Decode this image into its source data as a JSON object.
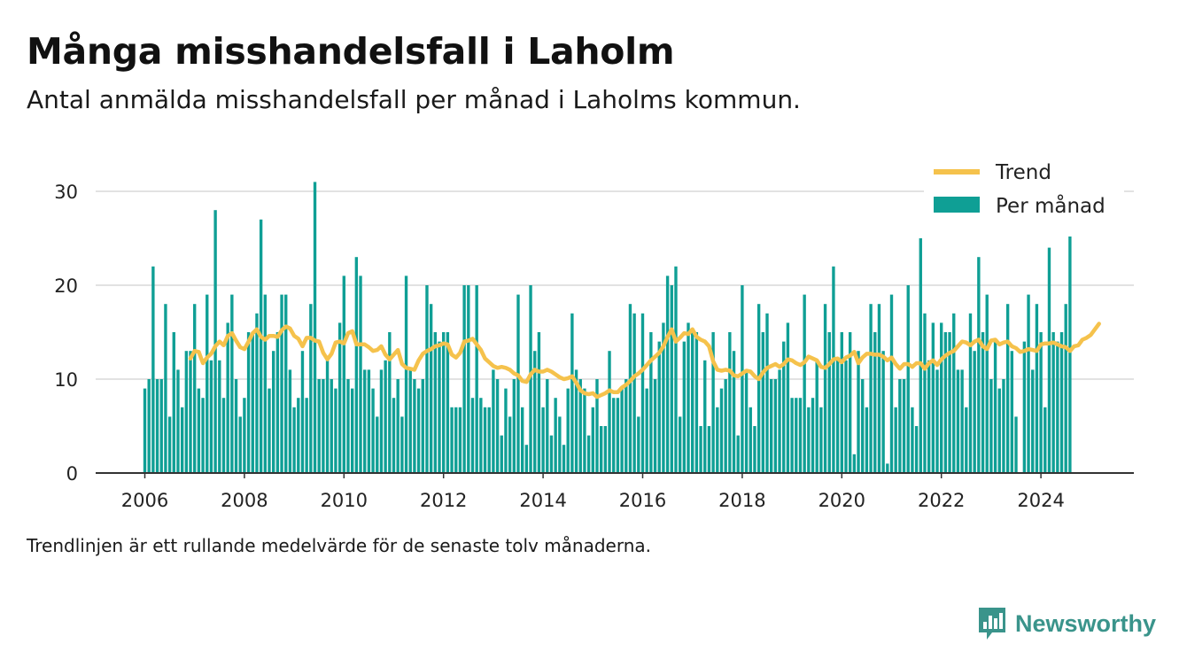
{
  "title": "Många misshandelsfall i Laholm",
  "subtitle": "Antal anmälda misshandelsfall per månad i Laholms kommun.",
  "note": "Trendlinjen är ett rullande medelvärde för de senaste tolv månaderna.",
  "brand": "Newsworthy",
  "chart_data": {
    "type": "bar",
    "start": "2006-01",
    "xticks": [
      "2006",
      "2008",
      "2010",
      "2012",
      "2014",
      "2016",
      "2018",
      "2020",
      "2022",
      "2024"
    ],
    "yticks": [
      "0",
      "10",
      "20",
      "30"
    ],
    "ylim": [
      0,
      32
    ],
    "grid": true,
    "legend_position": "top-right",
    "colors": {
      "bars": "#0f9f95",
      "trend": "#f5c24c"
    },
    "series": [
      {
        "name": "Per månad",
        "type": "bar",
        "values": [
          9,
          10,
          22,
          10,
          10,
          18,
          6,
          15,
          11,
          7,
          13,
          13,
          18,
          9,
          8,
          19,
          12,
          28,
          12,
          8,
          16,
          19,
          10,
          6,
          8,
          15,
          15,
          17,
          27,
          19,
          9,
          13,
          15,
          19,
          19,
          11,
          7,
          8,
          13,
          8,
          18,
          31,
          10,
          10,
          12,
          10,
          9,
          16,
          21,
          10,
          9,
          23,
          21,
          11,
          11,
          9,
          6,
          11,
          12,
          15,
          8,
          10,
          6,
          21,
          11,
          10,
          9,
          10,
          20,
          18,
          15,
          14,
          15,
          15,
          7,
          7,
          7,
          20,
          20,
          8,
          20,
          8,
          7,
          7,
          11,
          10,
          4,
          9,
          6,
          10,
          19,
          7,
          3,
          20,
          13,
          15,
          7,
          10,
          4,
          8,
          6,
          3,
          9,
          17,
          11,
          10,
          9,
          4,
          7,
          10,
          5,
          5,
          13,
          8,
          8,
          9,
          10,
          18,
          17,
          6,
          17,
          9,
          15,
          10,
          14,
          16,
          21,
          20,
          22,
          6,
          14,
          16,
          15,
          15,
          5,
          12,
          5,
          15,
          7,
          9,
          10,
          15,
          13,
          4,
          20,
          11,
          7,
          5,
          18,
          15,
          17,
          10,
          10,
          11,
          14,
          16,
          8,
          8,
          8,
          19,
          7,
          8,
          12,
          7,
          18,
          15,
          22,
          12,
          15,
          12,
          15,
          2,
          13,
          10,
          7,
          18,
          15,
          18,
          13,
          1,
          19,
          7,
          10,
          10,
          20,
          7,
          5,
          25,
          17,
          12,
          16,
          11,
          16,
          15,
          15,
          17,
          11,
          11,
          7,
          17,
          13,
          23,
          15,
          19,
          10,
          14,
          9,
          10,
          18,
          13,
          6,
          0,
          14,
          19,
          11,
          18,
          15,
          7,
          24,
          15,
          14,
          15,
          18,
          26
        ]
      },
      {
        "name": "Trend",
        "type": "line",
        "start_index": 11,
        "values": [
          12.2,
          13.0,
          12.9,
          11.7,
          12.3,
          12.7,
          13.5,
          14.0,
          13.6,
          14.6,
          14.9,
          14.1,
          13.4,
          13.2,
          14.0,
          14.9,
          15.3,
          14.5,
          14.2,
          14.6,
          14.6,
          14.5,
          15.2,
          15.6,
          15.4,
          14.6,
          14.3,
          13.5,
          14.4,
          14.4,
          14.1,
          14.0,
          12.8,
          12.1,
          12.7,
          13.9,
          14.0,
          13.8,
          14.9,
          15.1,
          13.7,
          13.7,
          13.7,
          13.4,
          13.0,
          13.1,
          13.5,
          12.6,
          12.1,
          12.6,
          13.1,
          11.6,
          11.2,
          11.1,
          11.0,
          12.0,
          12.7,
          13.0,
          13.2,
          13.5,
          13.6,
          13.8,
          13.7,
          12.6,
          12.3,
          12.8,
          14.0,
          14.1,
          14.3,
          13.7,
          13.1,
          12.2,
          11.8,
          11.4,
          11.2,
          11.3,
          11.2,
          11.0,
          10.6,
          10.4,
          9.8,
          9.7,
          10.5,
          11.0,
          10.8,
          10.8,
          11.0,
          10.8,
          10.5,
          10.2,
          10.0,
          10.1,
          10.3,
          9.6,
          8.8,
          8.5,
          8.4,
          8.5,
          8.1,
          8.3,
          8.5,
          8.8,
          8.6,
          8.6,
          9.1,
          9.4,
          9.8,
          10.3,
          10.6,
          11.0,
          11.5,
          12.0,
          12.4,
          12.8,
          13.5,
          14.5,
          15.3,
          14.0,
          14.4,
          14.9,
          14.8,
          15.3,
          14.5,
          14.2,
          14.0,
          13.5,
          11.9,
          11.0,
          10.9,
          11.0,
          10.9,
          10.4,
          10.3,
          10.6,
          10.9,
          10.8,
          10.3,
          10.0,
          10.7,
          11.2,
          11.4,
          11.6,
          11.3,
          11.6,
          12.1,
          12.0,
          11.7,
          11.5,
          11.8,
          12.4,
          12.2,
          12.0,
          11.3,
          11.2,
          11.6,
          12.1,
          12.2,
          11.8,
          12.3,
          12.5,
          12.9,
          11.7,
          12.3,
          12.7,
          12.7,
          12.6,
          12.6,
          12.4,
          12.0,
          12.3,
          11.6,
          11.1,
          11.6,
          11.6,
          11.3,
          11.7,
          11.7,
          11.1,
          11.7,
          12.0,
          11.5,
          12.1,
          12.5,
          12.8,
          13.0,
          13.5,
          14.0,
          13.9,
          13.6,
          14.0,
          14.2,
          13.5,
          13.2,
          14.1,
          14.2,
          13.7,
          13.9,
          14.0,
          13.5,
          13.3,
          12.9,
          13.0,
          13.2,
          13.1,
          13.0,
          13.7,
          13.8,
          13.8,
          13.9,
          13.7,
          13.5,
          13.4,
          13.0,
          13.5,
          13.6,
          14.2,
          14.4,
          14.7,
          15.3,
          15.9
        ]
      }
    ]
  }
}
